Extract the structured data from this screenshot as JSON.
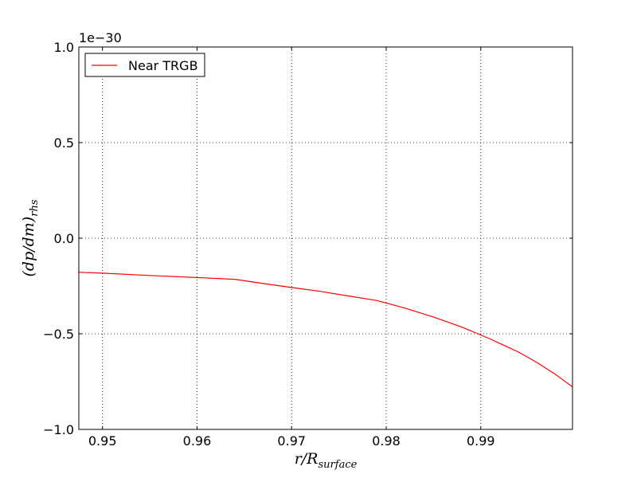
{
  "chart_data": {
    "type": "line",
    "offset_text": "1e−30",
    "xlabel": {
      "base": "r/R",
      "sub": "surface"
    },
    "ylabel": {
      "base": "(dp/dm)",
      "sub": "rhs"
    },
    "xlim": [
      0.9475,
      0.9997
    ],
    "ylim": [
      -1.0,
      1.0
    ],
    "xticks": [
      0.95,
      0.96,
      0.97,
      0.98,
      0.99
    ],
    "xtick_labels": [
      "0.95",
      "0.96",
      "0.97",
      "0.98",
      "0.99"
    ],
    "yticks": [
      1.0,
      0.5,
      0.0,
      -0.5,
      -1.0
    ],
    "ytick_labels": [
      "1.0",
      "0.5",
      "0.0",
      "−0.5",
      "−1.0"
    ],
    "grid": true,
    "legend_position": "top-left",
    "series": [
      {
        "name": "Near TRGB",
        "color": "#ff0000",
        "x": [
          0.9475,
          0.95,
          0.955,
          0.96,
          0.964,
          0.967,
          0.97,
          0.973,
          0.976,
          0.979,
          0.982,
          0.985,
          0.988,
          0.991,
          0.994,
          0.996,
          0.998,
          0.9997
        ],
        "y": [
          -0.178,
          -0.183,
          -0.195,
          -0.206,
          -0.215,
          -0.237,
          -0.258,
          -0.278,
          -0.302,
          -0.326,
          -0.366,
          -0.412,
          -0.465,
          -0.527,
          -0.596,
          -0.652,
          -0.716,
          -0.778
        ]
      }
    ]
  }
}
